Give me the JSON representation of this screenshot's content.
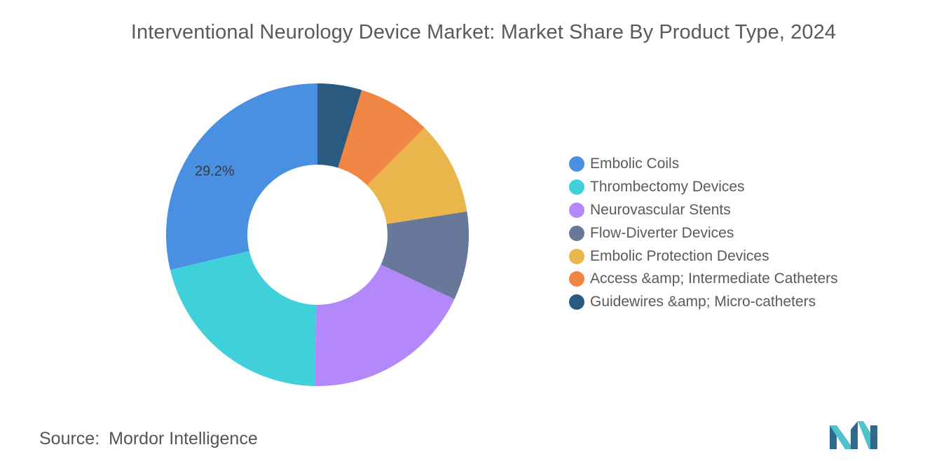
{
  "chart_data": {
    "type": "pie",
    "title": "Interventional Neurology Device Market: Market Share By Product Type, 2024",
    "categories": [
      "Embolic Coils",
      "Thrombectomy Devices",
      "Neurovascular Stents",
      "Flow-Diverter Devices",
      "Embolic Protection Devices",
      "Access &amp; Intermediate Catheters",
      "Guidewires &amp; Micro-catheters"
    ],
    "values": [
      29.2,
      21.3,
      18.6,
      9.6,
      10.2,
      7.9,
      4.8
    ],
    "data_labels": [
      "29.2%",
      "",
      "",
      "",
      "",
      "",
      ""
    ],
    "colors": [
      "#4a90e2",
      "#40d0da",
      "#b388fb",
      "#67789a",
      "#eab54a",
      "#f08544",
      "#2b5a80"
    ],
    "donut": true,
    "legend_position": "right"
  },
  "source": {
    "label": "Source:",
    "text": "Mordor Intelligence"
  },
  "logo": {
    "name": "mordor-intelligence-logo",
    "colors": [
      "#2f6a8a",
      "#4fc3c9"
    ]
  }
}
